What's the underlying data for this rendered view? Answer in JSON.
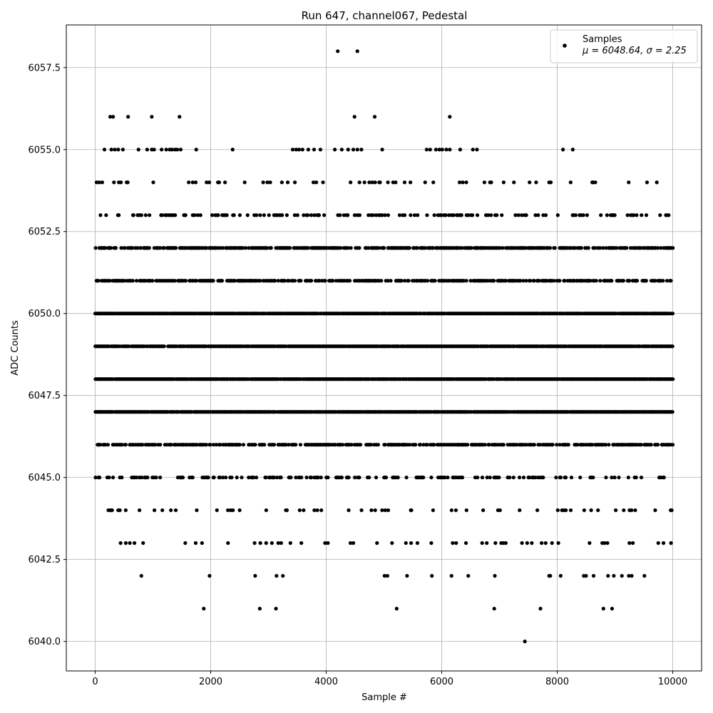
{
  "chart_data": {
    "type": "scatter",
    "title": "Run 647, channel067, Pedestal",
    "xlabel": "Sample #",
    "ylabel": "ADC Counts",
    "xlim": [
      -500,
      10500
    ],
    "ylim": [
      6039.1,
      6058.8
    ],
    "xticks": [
      0,
      2000,
      4000,
      6000,
      8000,
      10000
    ],
    "yticks": [
      6040.0,
      6042.5,
      6045.0,
      6047.5,
      6050.0,
      6052.5,
      6055.0,
      6057.5
    ],
    "grid": true,
    "legend": {
      "placement": "top-right",
      "entry": "Samples",
      "stats": "μ = 6048.64, σ = 2.25"
    },
    "series": [
      {
        "name": "Samples",
        "marker_color": "#000000",
        "x_range": [
          0,
          10000
        ],
        "mean": 6048.64,
        "std": 2.25,
        "value_levels": [
          {
            "adc": 6040,
            "x": [
              7440
            ]
          },
          {
            "adc": 6041,
            "x": [
              1880,
              2850,
              3130,
              5220,
              6910,
              7710,
              8800,
              8950
            ]
          },
          {
            "adc": 6042,
            "x": [
              800,
              1980,
              2770,
              3140,
              3250,
              5010,
              5060,
              5400,
              5830,
              6170,
              6460,
              6920,
              7860,
              7880,
              8060,
              8460,
              8500,
              8630,
              8880,
              8980,
              9120,
              9240,
              9290,
              9510
            ]
          },
          {
            "adc": 6043,
            "x": [
              440,
              530,
              600,
              680,
              830,
              1560,
              1740,
              1850,
              2300,
              2760,
              2860,
              2960,
              3060,
              3170,
              3220,
              3380,
              3570,
              3980,
              4030,
              4420,
              4470,
              4880,
              5140,
              5380,
              5470,
              5580,
              5820,
              6190,
              6250,
              6420,
              6700,
              6780,
              6930,
              7030,
              7070,
              7110,
              7390,
              7480,
              7560,
              7730,
              7800,
              7910,
              8020,
              8560,
              8780,
              8820,
              8870,
              9250,
              9310,
              9750,
              9840,
              9970
            ]
          }
        ],
        "continuous_levels": [
          {
            "adc": 6044,
            "coverage": "sparse"
          },
          {
            "adc": 6045,
            "coverage": "moderate"
          },
          {
            "adc": 6046,
            "coverage": "dense"
          },
          {
            "adc": 6047,
            "coverage": "full"
          },
          {
            "adc": 6048,
            "coverage": "full"
          },
          {
            "adc": 6049,
            "coverage": "full"
          },
          {
            "adc": 6050,
            "coverage": "full"
          },
          {
            "adc": 6051,
            "coverage": "dense"
          },
          {
            "adc": 6052,
            "coverage": "dense"
          },
          {
            "adc": 6053,
            "coverage": "moderate"
          },
          {
            "adc": 6054,
            "coverage": "sparse"
          }
        ],
        "upper_outliers": [
          {
            "adc": 6055,
            "x": [
              160,
              280,
              340,
              400,
              480,
              750,
              900,
              980,
              1020,
              1150,
              1230,
              1290,
              1330,
              1380,
              1420,
              1480,
              1750,
              2380,
              3420,
              3480,
              3530,
              3590,
              3690,
              3790,
              3900,
              4150,
              4270,
              4380,
              4470,
              4540,
              4610,
              4970,
              5740,
              5800,
              5900,
              5960,
              6010,
              6080,
              6140,
              6320,
              6540,
              6610,
              8100,
              8270
            ]
          },
          {
            "adc": 6056,
            "x": [
              260,
              310,
              570,
              980,
              1460,
              4490,
              4840,
              6140
            ]
          },
          {
            "adc": 6058,
            "x": [
              4200,
              4540
            ]
          }
        ]
      }
    ]
  }
}
